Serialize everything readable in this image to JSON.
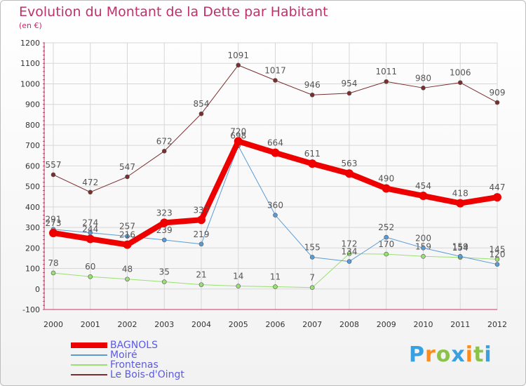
{
  "chart_data": {
    "type": "line",
    "title": "Evolution du Montant de la Dette par Habitant",
    "subtitle": "(en €)",
    "x": [
      "2000",
      "2001",
      "2002",
      "2003",
      "2004",
      "2005",
      "2006",
      "2007",
      "2008",
      "2009",
      "2010",
      "2011",
      "2012"
    ],
    "ylim": [
      -100,
      1200
    ],
    "yticks": [
      "-100",
      "0",
      "100",
      "200",
      "300",
      "400",
      "500",
      "600",
      "700",
      "800",
      "900",
      "1000",
      "1100",
      "1200"
    ],
    "grid": true,
    "legend_position": "bottom-left",
    "series": [
      {
        "name": "Le Bois-d'Oingt",
        "color": "#7a2e2e",
        "width": 1,
        "values": [
          557,
          472,
          547,
          672,
          854,
          1091,
          1017,
          946,
          954,
          1011,
          980,
          1006,
          909
        ],
        "labels": [
          "557",
          "472",
          "547",
          "672",
          "854",
          "1091",
          "1017",
          "946",
          "954",
          "1011",
          "980",
          "1006",
          "909"
        ]
      },
      {
        "name": "Frontenas",
        "color": "#99e072",
        "width": 1,
        "values": [
          78,
          60,
          48,
          35,
          21,
          14,
          11,
          7,
          172,
          170,
          159,
          154,
          145
        ],
        "labels": [
          "78",
          "60",
          "48",
          "35",
          "21",
          "14",
          "11",
          "7",
          "172",
          "170",
          "159",
          "154",
          "145"
        ]
      },
      {
        "name": "Moiré",
        "color": "#5b9bd5",
        "width": 1,
        "values": [
          291,
          274,
          257,
          239,
          219,
          698,
          360,
          155,
          134,
          252,
          200,
          159,
          120
        ],
        "labels": [
          "291",
          "274",
          "257",
          "239",
          "219",
          "698",
          "360",
          "155",
          "134",
          "252",
          "200",
          "159",
          "120"
        ]
      },
      {
        "name": "BAGNOLS",
        "color": "#ee0000",
        "width": 8,
        "values": [
          273,
          244,
          216,
          323,
          337,
          720,
          664,
          611,
          563,
          490,
          454,
          418,
          447
        ],
        "labels": [
          "273",
          "244",
          "216",
          "323",
          "337",
          "720",
          "664",
          "611",
          "563",
          "490",
          "454",
          "418",
          "447"
        ]
      }
    ]
  },
  "legend": {
    "items": [
      {
        "label": "BAGNOLS",
        "color": "#ee0000",
        "thickness": "thick"
      },
      {
        "label": "Moiré",
        "color": "#5b9bd5",
        "thickness": "thin"
      },
      {
        "label": "Frontenas",
        "color": "#99e072",
        "thickness": "thin"
      },
      {
        "label": "Le Bois-d'Oingt",
        "color": "#7a2e2e",
        "thickness": "thin"
      }
    ]
  },
  "logo": {
    "letters": [
      "P",
      "r",
      "o",
      "x",
      "i",
      "t",
      "i"
    ],
    "colors": [
      "#3aa0e0",
      "#ff8c1a",
      "#8bc34a",
      "#3aa0e0",
      "#ff8c1a",
      "#8bc34a",
      "#3aa0e0"
    ]
  }
}
